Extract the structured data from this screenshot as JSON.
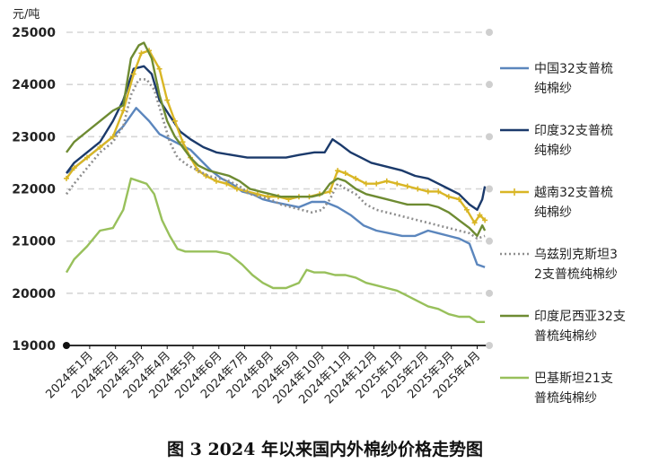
{
  "caption": "图 3 2024 年以来国内外棉纱价格走势图",
  "chart_data": {
    "type": "line",
    "ylabel": "元/吨",
    "ylim": [
      19000,
      25000
    ],
    "yticks": [
      19000,
      20000,
      21000,
      22000,
      23000,
      24000,
      25000
    ],
    "grid": true,
    "legend_position": "right",
    "x_tick_labels": [
      "2024年1月",
      "2024年2月",
      "2024年3月",
      "2024年4月",
      "2024年5月",
      "2024年6月",
      "2024年7月",
      "2024年8月",
      "2024年9月",
      "2024年10月",
      "2024年11月",
      "2024年12月",
      "2025年1月",
      "2025年2月",
      "2025年3月",
      "2025年4月"
    ],
    "x_range": [
      0,
      16.3
    ],
    "series": [
      {
        "name": "中国32支普梳纯棉纱",
        "color": "#5b86bd",
        "style": "solid",
        "x": [
          0,
          0.3,
          0.8,
          1.3,
          1.8,
          2.2,
          2.7,
          3.2,
          3.6,
          4.0,
          4.4,
          4.8,
          5.2,
          5.6,
          6.0,
          6.4,
          6.8,
          7.2,
          7.6,
          8.0,
          8.5,
          9.0,
          9.5,
          10.0,
          10.5,
          11.0,
          11.5,
          12.0,
          12.5,
          13.0,
          13.5,
          14.0,
          14.4,
          14.8,
          15.2,
          15.6,
          15.9,
          16.2
        ],
        "y": [
          22300,
          22400,
          22600,
          22800,
          23000,
          23200,
          23550,
          23300,
          23050,
          22950,
          22850,
          22750,
          22550,
          22350,
          22200,
          22100,
          21950,
          21900,
          21800,
          21750,
          21700,
          21650,
          21750,
          21750,
          21650,
          21500,
          21300,
          21200,
          21150,
          21100,
          21100,
          21200,
          21150,
          21100,
          21050,
          20950,
          20550,
          20500
        ]
      },
      {
        "name": "印度32支普梳纯棉纱",
        "color": "#1b3a6b",
        "style": "solid",
        "x": [
          0,
          0.3,
          0.8,
          1.3,
          1.8,
          2.2,
          2.6,
          3.0,
          3.3,
          3.6,
          4.0,
          4.4,
          4.8,
          5.3,
          5.8,
          6.4,
          7.0,
          7.6,
          8.0,
          8.5,
          9.0,
          9.6,
          10.0,
          10.3,
          10.6,
          11.0,
          11.4,
          11.8,
          12.2,
          12.6,
          13.0,
          13.5,
          14.0,
          14.4,
          14.8,
          15.2,
          15.6,
          15.9,
          16.1,
          16.2
        ],
        "y": [
          22300,
          22500,
          22700,
          22900,
          23300,
          23700,
          24300,
          24350,
          24200,
          23700,
          23400,
          23100,
          22950,
          22800,
          22700,
          22650,
          22600,
          22600,
          22600,
          22600,
          22650,
          22700,
          22700,
          22950,
          22850,
          22700,
          22600,
          22500,
          22450,
          22400,
          22350,
          22250,
          22200,
          22100,
          22000,
          21900,
          21700,
          21600,
          21800,
          22050
        ]
      },
      {
        "name": "越南32支普梳纯棉纱",
        "color": "#d9b625",
        "style": "solid",
        "markers": true,
        "x": [
          0,
          0.3,
          0.8,
          1.3,
          1.8,
          2.2,
          2.6,
          2.9,
          3.2,
          3.6,
          3.9,
          4.2,
          4.5,
          4.8,
          5.1,
          5.4,
          5.8,
          6.2,
          6.6,
          7.0,
          7.4,
          7.8,
          8.2,
          8.6,
          9.0,
          9.4,
          9.8,
          10.2,
          10.5,
          10.8,
          11.2,
          11.6,
          12.0,
          12.4,
          12.8,
          13.2,
          13.6,
          14.0,
          14.4,
          14.8,
          15.2,
          15.5,
          15.8,
          16.0,
          16.2
        ],
        "y": [
          22200,
          22400,
          22600,
          22800,
          23000,
          23500,
          24200,
          24600,
          24650,
          24300,
          23700,
          23300,
          22900,
          22600,
          22350,
          22250,
          22150,
          22100,
          22000,
          21950,
          21900,
          21850,
          21850,
          21800,
          21850,
          21850,
          21900,
          21950,
          22350,
          22300,
          22200,
          22100,
          22100,
          22150,
          22100,
          22050,
          22000,
          21950,
          21950,
          21850,
          21800,
          21600,
          21350,
          21500,
          21400
        ]
      },
      {
        "name": "乌兹别克斯坦32支普梳纯棉纱",
        "color": "#8f8f8f",
        "style": "dotted",
        "x": [
          0,
          0.3,
          0.8,
          1.3,
          1.8,
          2.2,
          2.5,
          2.8,
          3.1,
          3.4,
          3.7,
          4.0,
          4.3,
          4.7,
          5.1,
          5.5,
          5.9,
          6.3,
          6.7,
          7.1,
          7.5,
          7.9,
          8.3,
          8.7,
          9.1,
          9.5,
          9.9,
          10.2,
          10.5,
          10.8,
          11.2,
          11.6,
          12.0,
          12.4,
          12.8,
          13.2,
          13.6,
          14.0,
          14.4,
          14.8,
          15.2,
          15.6,
          15.9,
          16.2
        ],
        "y": [
          21900,
          22100,
          22400,
          22700,
          22900,
          23200,
          23800,
          24100,
          24100,
          23900,
          23400,
          22900,
          22600,
          22450,
          22350,
          22250,
          22200,
          22150,
          22050,
          21900,
          21850,
          21800,
          21700,
          21650,
          21600,
          21550,
          21600,
          21800,
          22100,
          22000,
          21900,
          21700,
          21600,
          21550,
          21500,
          21450,
          21400,
          21350,
          21300,
          21250,
          21200,
          21150,
          21050,
          21100
        ]
      },
      {
        "name": "印度尼西亚32支普梳纯棉纱",
        "color": "#6e8b32",
        "style": "solid",
        "x": [
          0,
          0.3,
          0.8,
          1.3,
          1.8,
          2.2,
          2.5,
          2.8,
          3.0,
          3.3,
          3.6,
          3.9,
          4.2,
          4.5,
          4.8,
          5.1,
          5.5,
          5.9,
          6.3,
          6.7,
          7.1,
          7.5,
          7.9,
          8.3,
          8.7,
          9.1,
          9.5,
          9.9,
          10.2,
          10.5,
          10.8,
          11.2,
          11.6,
          12.0,
          12.4,
          12.8,
          13.2,
          13.6,
          14.0,
          14.4,
          14.8,
          15.2,
          15.6,
          15.9,
          16.1,
          16.2
        ],
        "y": [
          22700,
          22900,
          23100,
          23300,
          23500,
          23600,
          24500,
          24750,
          24800,
          24500,
          23800,
          23300,
          23000,
          22800,
          22600,
          22450,
          22350,
          22300,
          22250,
          22150,
          22000,
          21950,
          21900,
          21850,
          21850,
          21850,
          21850,
          21900,
          22100,
          22200,
          22150,
          22000,
          21900,
          21850,
          21800,
          21750,
          21700,
          21700,
          21700,
          21650,
          21550,
          21400,
          21250,
          21100,
          21300,
          21200
        ]
      },
      {
        "name": "巴基斯坦21支普梳纯棉纱",
        "color": "#98c05b",
        "style": "solid",
        "x": [
          0,
          0.3,
          0.8,
          1.3,
          1.8,
          2.2,
          2.5,
          2.8,
          3.1,
          3.4,
          3.7,
          4.0,
          4.3,
          4.6,
          4.9,
          5.3,
          5.8,
          6.3,
          6.8,
          7.2,
          7.6,
          8.0,
          8.5,
          9.0,
          9.3,
          9.6,
          10.0,
          10.4,
          10.8,
          11.2,
          11.6,
          12.0,
          12.4,
          12.8,
          13.2,
          13.6,
          14.0,
          14.4,
          14.8,
          15.2,
          15.6,
          15.9,
          16.2
        ],
        "y": [
          20400,
          20650,
          20900,
          21200,
          21250,
          21600,
          22200,
          22150,
          22100,
          21900,
          21400,
          21100,
          20850,
          20800,
          20800,
          20800,
          20800,
          20750,
          20550,
          20350,
          20200,
          20100,
          20100,
          20200,
          20450,
          20400,
          20400,
          20350,
          20350,
          20300,
          20200,
          20150,
          20100,
          20050,
          19950,
          19850,
          19750,
          19700,
          19600,
          19550,
          19550,
          19450,
          19450
        ]
      }
    ]
  }
}
